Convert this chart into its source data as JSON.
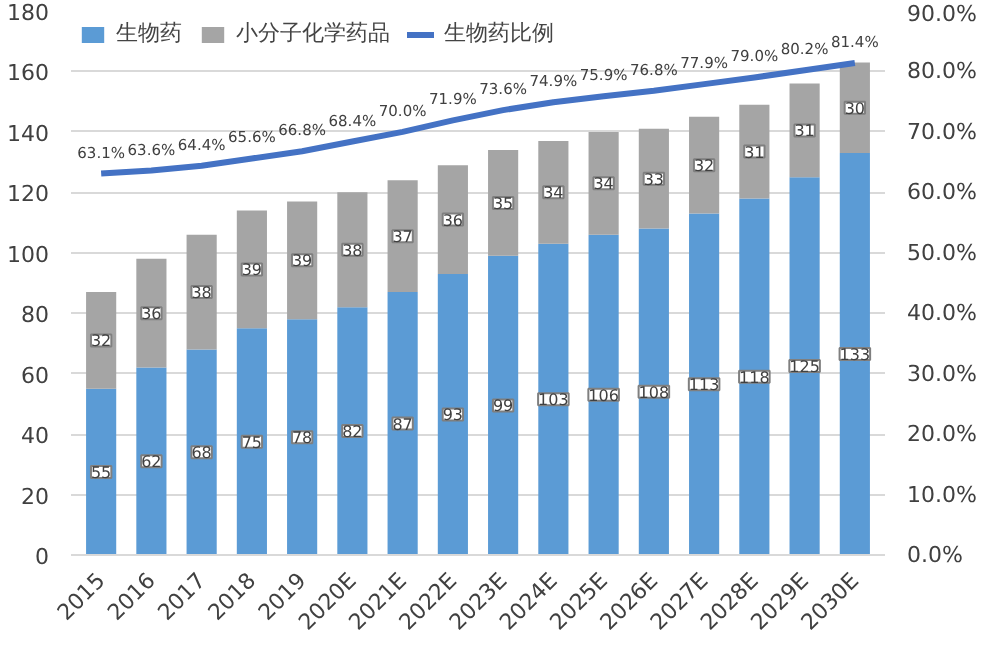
{
  "chart_data": {
    "type": "bar",
    "stacked": true,
    "data_labels": true,
    "legend": "top left",
    "grid": "y",
    "categories": [
      "2015",
      "2016",
      "2017",
      "2018",
      "2019",
      "2020E",
      "2021E",
      "2022E",
      "2023E",
      "2024E",
      "2025E",
      "2026E",
      "2027E",
      "2028E",
      "2029E",
      "2030E"
    ],
    "ylim": [
      0,
      180
    ],
    "yticks": [
      0,
      20,
      40,
      60,
      80,
      100,
      120,
      140,
      160,
      180
    ],
    "y2lim": [
      0,
      90
    ],
    "y2ticks": [
      {
        "value": 0,
        "label": "0.0%"
      },
      {
        "value": 10,
        "label": "10.0%"
      },
      {
        "value": 20,
        "label": "20.0%"
      },
      {
        "value": 30,
        "label": "30.0%"
      },
      {
        "value": 40,
        "label": "40.0%"
      },
      {
        "value": 50,
        "label": "50.0%"
      },
      {
        "value": 60,
        "label": "60.0%"
      },
      {
        "value": 70,
        "label": "70.0%"
      },
      {
        "value": 80,
        "label": "80.0%"
      },
      {
        "value": 90,
        "label": "90.0%"
      }
    ],
    "series": [
      {
        "name": "生物药",
        "color": "#5b9bd5",
        "values": [
          55,
          62,
          68,
          75,
          78,
          82,
          87,
          93,
          99,
          103,
          106,
          108,
          113,
          118,
          125,
          133
        ]
      },
      {
        "name": "小分子化学药品",
        "color": "#a5a5a5",
        "values": [
          32,
          36,
          38,
          39,
          39,
          38,
          37,
          36,
          35,
          34,
          34,
          33,
          32,
          31,
          31,
          30
        ]
      },
      {
        "name": "生物药比例",
        "type": "line",
        "axis": "y2",
        "color": "#4472c4",
        "values": [
          63.1,
          63.6,
          64.4,
          65.6,
          66.8,
          68.4,
          70.0,
          71.9,
          73.6,
          74.9,
          75.9,
          76.8,
          77.9,
          79.0,
          80.2,
          81.4
        ],
        "value_labels": [
          "63.1%",
          "63.6%",
          "64.4%",
          "65.6%",
          "66.8%",
          "68.4%",
          "70.0%",
          "71.9%",
          "73.6%",
          "74.9%",
          "75.9%",
          "76.8%",
          "77.9%",
          "79.0%",
          "80.2%",
          "81.4%"
        ]
      }
    ]
  }
}
